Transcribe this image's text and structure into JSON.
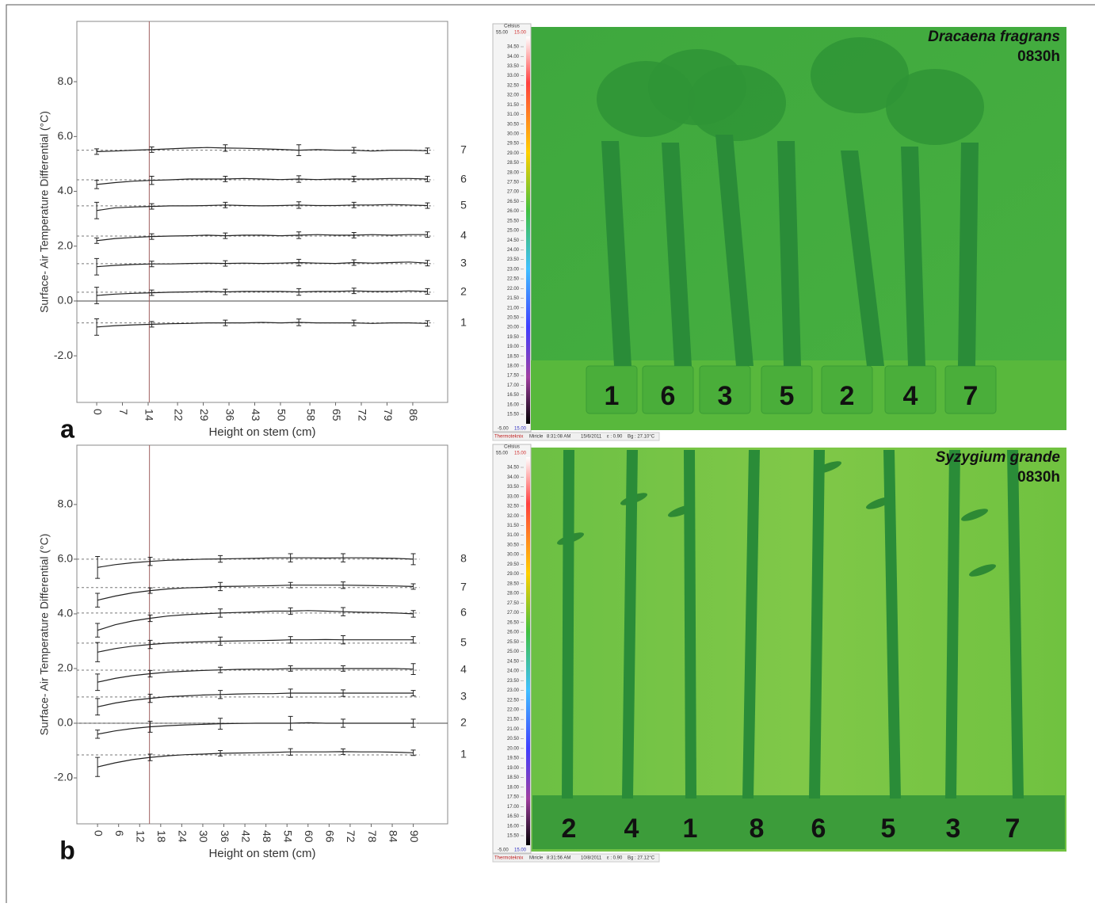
{
  "chart_data": [
    {
      "type": "line",
      "panel": "a",
      "ylabel": "Surface- Air Temperature Differential (°C)",
      "xlabel": "Height on stem (cm)",
      "xlim": [
        -5.4,
        95.5
      ],
      "ylim": [
        -3.7,
        10.2
      ],
      "xticks": [
        0,
        7,
        14,
        22,
        29,
        36,
        43,
        50,
        58,
        65,
        72,
        79,
        86
      ],
      "yticks": [
        {
          "value": -2,
          "label": "-2.0"
        },
        {
          "value": 0,
          "label": "0.0"
        },
        {
          "value": 2,
          "label": "2.0"
        },
        {
          "value": 4,
          "label": "4.0"
        },
        {
          "value": 6,
          "label": "6.0"
        },
        {
          "value": 8,
          "label": "8.0"
        }
      ],
      "vline": 14.3,
      "color": "#222222",
      "x": [
        0,
        5,
        10,
        15,
        20,
        25,
        30,
        35,
        40,
        45,
        50,
        55,
        60,
        65,
        70,
        75,
        80,
        85,
        90
      ],
      "series": [
        {
          "name": "1",
          "baseline": -0.8,
          "values": [
            -0.95,
            -0.9,
            -0.87,
            -0.85,
            -0.83,
            -0.82,
            -0.8,
            -0.8,
            -0.8,
            -0.78,
            -0.8,
            -0.78,
            -0.8,
            -0.8,
            -0.8,
            -0.82,
            -0.8,
            -0.8,
            -0.82
          ],
          "errors": [
            0.3,
            null,
            null,
            0.1,
            null,
            null,
            null,
            0.1,
            null,
            null,
            null,
            0.12,
            null,
            null,
            0.1,
            null,
            null,
            null,
            0.1
          ]
        },
        {
          "name": "2",
          "baseline": 0.32,
          "values": [
            0.2,
            0.25,
            0.28,
            0.3,
            0.32,
            0.33,
            0.35,
            0.33,
            0.35,
            0.35,
            0.35,
            0.33,
            0.35,
            0.35,
            0.37,
            0.35,
            0.35,
            0.37,
            0.35
          ],
          "errors": [
            0.3,
            null,
            null,
            0.1,
            null,
            null,
            null,
            0.1,
            null,
            null,
            null,
            0.12,
            null,
            null,
            0.1,
            null,
            null,
            null,
            0.1
          ]
        },
        {
          "name": "3",
          "baseline": 1.36,
          "values": [
            1.25,
            1.3,
            1.33,
            1.35,
            1.35,
            1.37,
            1.38,
            1.37,
            1.38,
            1.37,
            1.38,
            1.4,
            1.38,
            1.37,
            1.4,
            1.38,
            1.4,
            1.42,
            1.38
          ],
          "errors": [
            0.3,
            null,
            null,
            0.1,
            null,
            null,
            null,
            0.1,
            null,
            null,
            null,
            0.12,
            null,
            null,
            0.1,
            null,
            null,
            null,
            0.1
          ]
        },
        {
          "name": "4",
          "baseline": 2.37,
          "values": [
            2.2,
            2.28,
            2.32,
            2.35,
            2.37,
            2.38,
            2.4,
            2.38,
            2.4,
            2.4,
            2.38,
            2.4,
            2.42,
            2.4,
            2.4,
            2.42,
            2.4,
            2.42,
            2.42
          ],
          "errors": [
            0.1,
            null,
            null,
            0.1,
            null,
            null,
            null,
            0.1,
            null,
            null,
            null,
            0.12,
            null,
            null,
            0.1,
            null,
            null,
            null,
            0.1
          ]
        },
        {
          "name": "5",
          "baseline": 3.47,
          "values": [
            3.3,
            3.4,
            3.43,
            3.45,
            3.47,
            3.47,
            3.48,
            3.5,
            3.48,
            3.47,
            3.48,
            3.5,
            3.48,
            3.48,
            3.5,
            3.5,
            3.52,
            3.5,
            3.48
          ],
          "errors": [
            0.3,
            null,
            null,
            0.1,
            null,
            null,
            null,
            0.1,
            null,
            null,
            null,
            0.12,
            null,
            null,
            0.1,
            null,
            null,
            null,
            0.1
          ]
        },
        {
          "name": "6",
          "baseline": 4.42,
          "values": [
            4.25,
            4.32,
            4.37,
            4.4,
            4.42,
            4.45,
            4.45,
            4.45,
            4.47,
            4.45,
            4.43,
            4.45,
            4.43,
            4.45,
            4.45,
            4.45,
            4.47,
            4.47,
            4.45
          ],
          "errors": [
            0.15,
            null,
            null,
            0.15,
            null,
            null,
            null,
            0.1,
            null,
            null,
            null,
            0.12,
            null,
            null,
            0.1,
            null,
            null,
            null,
            0.1
          ]
        },
        {
          "name": "7",
          "baseline": 5.5,
          "values": [
            5.45,
            5.47,
            5.5,
            5.52,
            5.55,
            5.58,
            5.6,
            5.58,
            5.57,
            5.55,
            5.53,
            5.5,
            5.52,
            5.5,
            5.5,
            5.47,
            5.5,
            5.5,
            5.48
          ],
          "errors": [
            0.1,
            null,
            null,
            0.1,
            null,
            null,
            null,
            0.12,
            null,
            null,
            null,
            0.2,
            null,
            null,
            0.1,
            null,
            null,
            null,
            0.1
          ]
        }
      ]
    },
    {
      "type": "line",
      "panel": "b",
      "ylabel": "Surface- Air Temperature Differential (°C)",
      "xlabel": "Height on stem (cm)",
      "xlim": [
        -5.9,
        99.8
      ],
      "ylim": [
        -3.68,
        10.17
      ],
      "xticks": [
        0,
        6,
        12,
        18,
        24,
        30,
        36,
        42,
        48,
        54,
        60,
        66,
        72,
        78,
        84,
        90
      ],
      "yticks": [
        {
          "value": -2,
          "label": "-2.0"
        },
        {
          "value": 0,
          "label": "0.0"
        },
        {
          "value": 2,
          "label": "2.0"
        },
        {
          "value": 4,
          "label": "4.0"
        },
        {
          "value": 6,
          "label": "6.0"
        },
        {
          "value": 8,
          "label": "8.0"
        }
      ],
      "vline": 14.8,
      "color": "#222222",
      "x": [
        0,
        5,
        10,
        15,
        20,
        25,
        30,
        35,
        40,
        45,
        50,
        55,
        60,
        65,
        70,
        75,
        80,
        85,
        90
      ],
      "series": [
        {
          "name": "1",
          "baseline": -1.16,
          "values": [
            -1.6,
            -1.45,
            -1.33,
            -1.25,
            -1.19,
            -1.15,
            -1.13,
            -1.1,
            -1.09,
            -1.08,
            -1.07,
            -1.05,
            -1.05,
            -1.05,
            -1.04,
            -1.05,
            -1.05,
            -1.06,
            -1.08
          ],
          "errors": [
            0.35,
            null,
            null,
            0.12,
            null,
            null,
            null,
            0.1,
            null,
            null,
            null,
            0.12,
            null,
            null,
            0.1,
            null,
            null,
            null,
            0.1
          ]
        },
        {
          "name": "2",
          "baseline": 0,
          "values": [
            -0.4,
            -0.28,
            -0.19,
            -0.13,
            -0.09,
            -0.06,
            -0.04,
            -0.02,
            -0.01,
            0,
            0,
            0,
            0.02,
            0,
            0,
            0,
            0,
            0,
            0
          ],
          "errors": [
            0.15,
            null,
            null,
            0.2,
            null,
            null,
            null,
            0.2,
            null,
            null,
            null,
            0.25,
            null,
            null,
            0.15,
            null,
            null,
            null,
            0.15
          ]
        },
        {
          "name": "3",
          "baseline": 0.96,
          "values": [
            0.6,
            0.74,
            0.84,
            0.91,
            0.97,
            1.0,
            1.03,
            1.05,
            1.07,
            1.08,
            1.08,
            1.1,
            1.1,
            1.1,
            1.1,
            1.1,
            1.1,
            1.1,
            1.1
          ],
          "errors": [
            0.3,
            null,
            null,
            0.15,
            null,
            null,
            null,
            0.15,
            null,
            null,
            null,
            0.15,
            null,
            null,
            0.12,
            null,
            null,
            null,
            0.1
          ]
        },
        {
          "name": "4",
          "baseline": 1.94,
          "values": [
            1.5,
            1.64,
            1.74,
            1.81,
            1.87,
            1.9,
            1.93,
            1.95,
            1.97,
            1.98,
            1.98,
            2.0,
            2.0,
            2.0,
            2.0,
            2.0,
            2.0,
            2.0,
            1.98
          ],
          "errors": [
            0.3,
            null,
            null,
            0.12,
            null,
            null,
            null,
            0.1,
            null,
            null,
            null,
            0.1,
            null,
            null,
            0.1,
            null,
            null,
            null,
            0.2
          ]
        },
        {
          "name": "5",
          "baseline": 2.93,
          "values": [
            2.6,
            2.73,
            2.82,
            2.88,
            2.93,
            2.96,
            2.98,
            3.0,
            3.01,
            3.02,
            3.03,
            3.05,
            3.05,
            3.06,
            3.05,
            3.05,
            3.05,
            3.05,
            3.05
          ],
          "errors": [
            0.35,
            null,
            null,
            0.15,
            null,
            null,
            null,
            0.15,
            null,
            null,
            null,
            0.12,
            null,
            null,
            0.15,
            null,
            null,
            null,
            0.12
          ]
        },
        {
          "name": "6",
          "baseline": 4.03,
          "values": [
            3.4,
            3.6,
            3.74,
            3.84,
            3.92,
            3.97,
            4.0,
            4.03,
            4.05,
            4.07,
            4.1,
            4.1,
            4.12,
            4.1,
            4.08,
            4.06,
            4.05,
            4.03,
            4.0
          ],
          "errors": [
            0.25,
            null,
            null,
            0.12,
            null,
            null,
            null,
            0.15,
            null,
            null,
            null,
            0.12,
            null,
            null,
            0.15,
            null,
            null,
            null,
            0.12
          ]
        },
        {
          "name": "7",
          "baseline": 4.96,
          "values": [
            4.5,
            4.65,
            4.77,
            4.85,
            4.91,
            4.95,
            4.97,
            5.0,
            5.01,
            5.02,
            5.03,
            5.05,
            5.05,
            5.05,
            5.05,
            5.04,
            5.03,
            5.02,
            5.0
          ],
          "errors": [
            0.25,
            null,
            null,
            0.1,
            null,
            null,
            null,
            0.15,
            null,
            null,
            null,
            0.1,
            null,
            null,
            0.12,
            null,
            null,
            null,
            0.1
          ]
        },
        {
          "name": "8",
          "baseline": 6.0,
          "values": [
            5.7,
            5.8,
            5.87,
            5.92,
            5.96,
            5.98,
            6.0,
            6.01,
            6.02,
            6.03,
            6.05,
            6.05,
            6.05,
            6.04,
            6.05,
            6.05,
            6.04,
            6.03,
            6.0
          ],
          "errors": [
            0.4,
            null,
            null,
            0.15,
            null,
            null,
            null,
            0.12,
            null,
            null,
            null,
            0.15,
            null,
            null,
            0.15,
            null,
            null,
            null,
            0.2
          ]
        }
      ]
    }
  ],
  "thermal_scale": {
    "unit": "Celsius",
    "max": "55.00",
    "level": "15.00",
    "min": "-5.00",
    "span": "15.00",
    "ticks": [
      "34.50",
      "34.00",
      "33.50",
      "33.00",
      "32.50",
      "32.00",
      "31.50",
      "31.00",
      "30.50",
      "30.00",
      "29.50",
      "29.00",
      "28.50",
      "28.00",
      "27.50",
      "27.00",
      "26.50",
      "26.00",
      "25.50",
      "25.00",
      "24.50",
      "24.00",
      "23.50",
      "23.00",
      "22.50",
      "22.00",
      "21.50",
      "21.00",
      "20.50",
      "20.00",
      "19.50",
      "19.00",
      "18.50",
      "18.00",
      "17.50",
      "17.00",
      "16.50",
      "16.00",
      "15.50"
    ],
    "brand": "Thermoteknix",
    "camera": "Miricle"
  },
  "thermal_images": [
    {
      "species": "Dracaena fragrans",
      "time": "0830h",
      "labels": [
        "1",
        "6",
        "3",
        "5",
        "2",
        "4",
        "7"
      ],
      "status": {
        "clock": "8:31:08 AM",
        "date": "15/6/2011",
        "emissivity": "ε : 0.90",
        "background": "Bg : 27.10°C"
      }
    },
    {
      "species": "Syzygium grande",
      "time": "0830h",
      "labels": [
        "2",
        "4",
        "1",
        "8",
        "6",
        "5",
        "3",
        "7"
      ],
      "status": {
        "clock": "8:31:56 AM",
        "date": "10/8/2011",
        "emissivity": "ε : 0.90",
        "background": "Bg : 27.12°C"
      }
    }
  ]
}
